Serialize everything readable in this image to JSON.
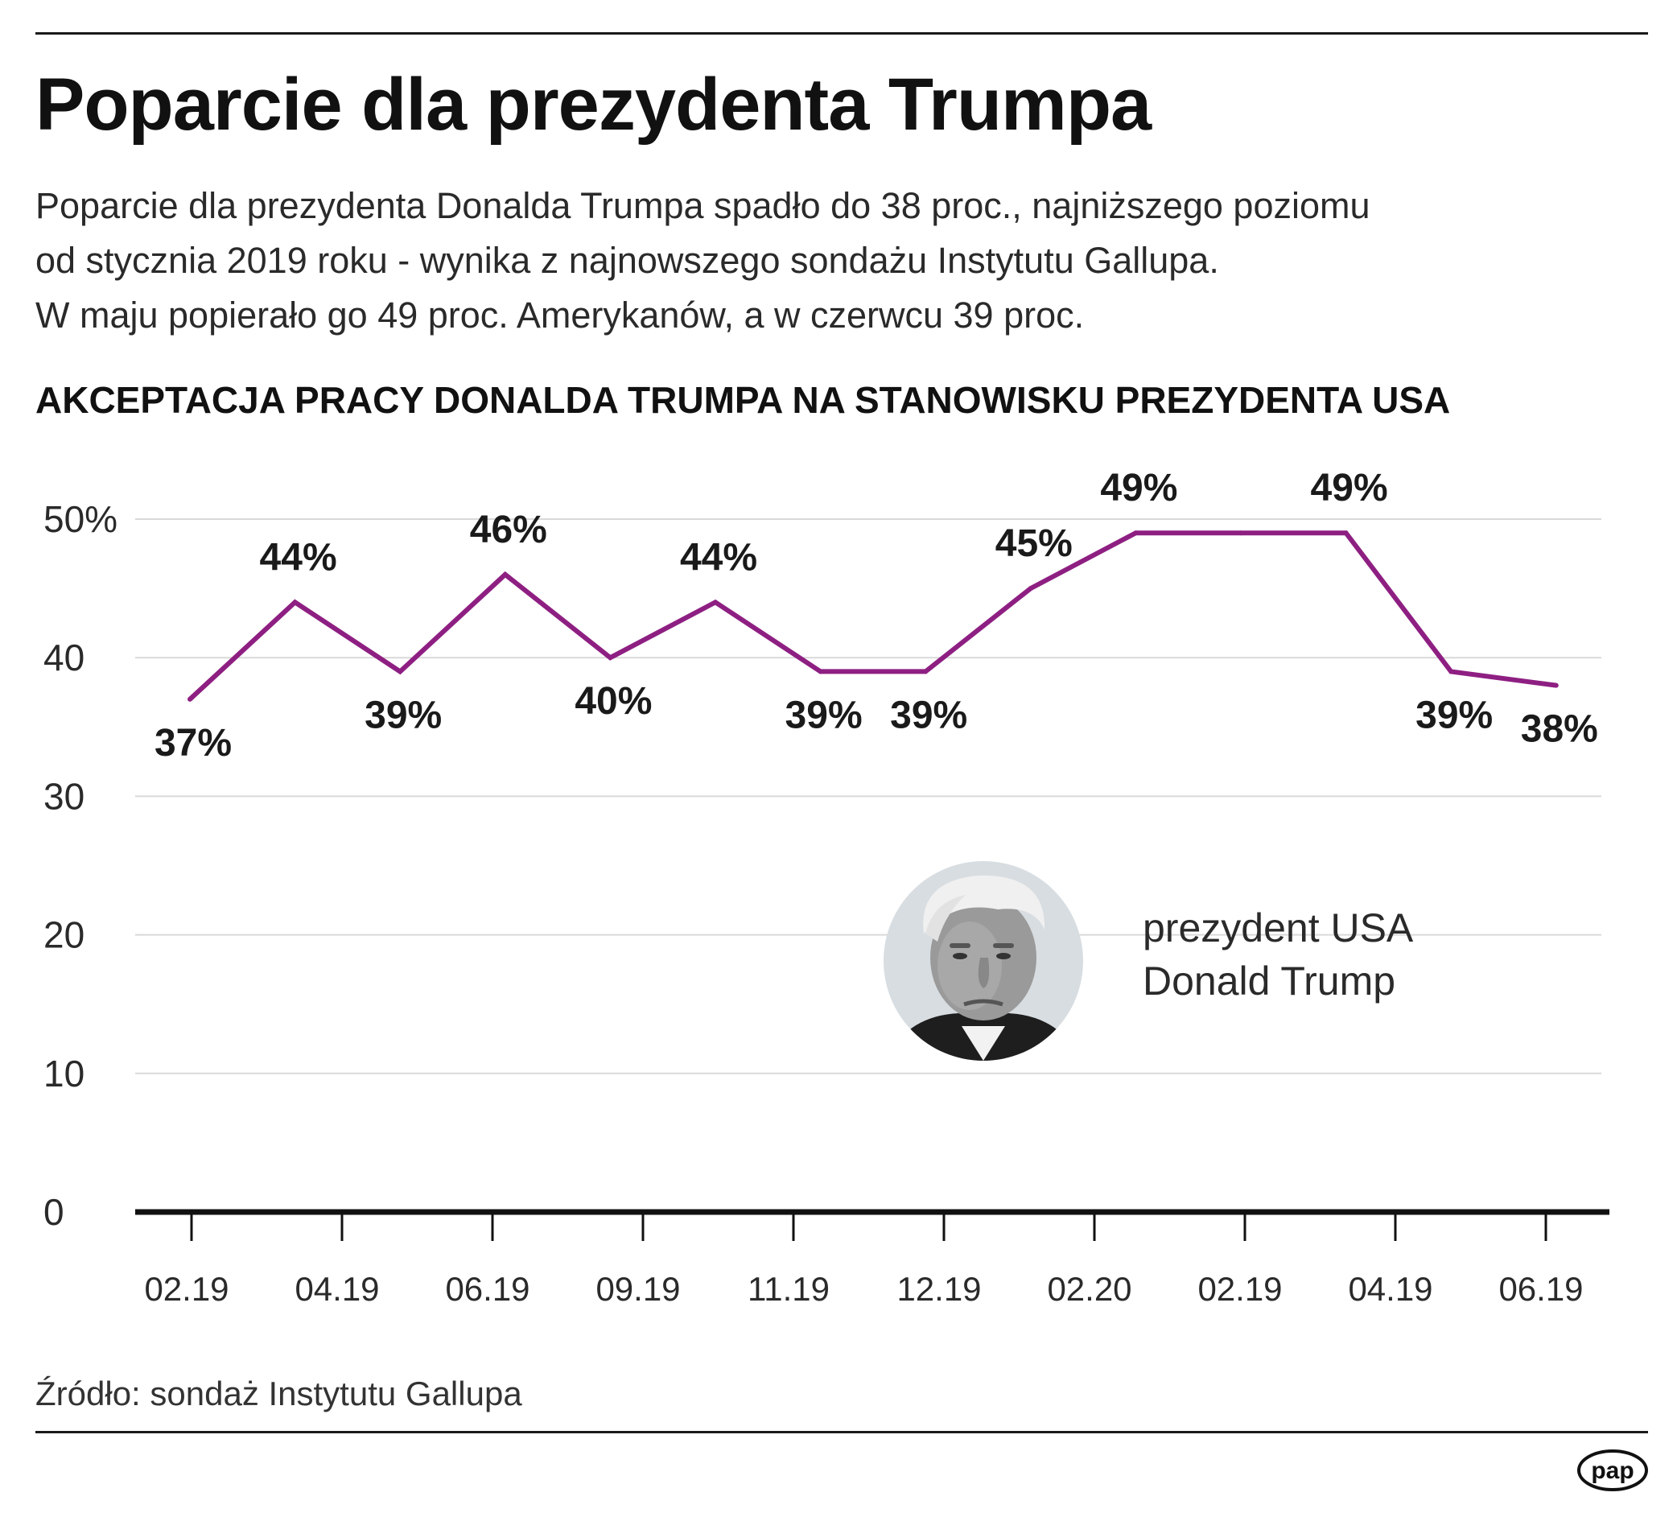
{
  "header": {
    "title": "Poparcie dla prezydenta Trumpa",
    "subtitle_lines": [
      "Poparcie dla prezydenta Donalda Trumpa spadło do 38 proc., najniższego poziomu",
      "od stycznia 2019 roku - wynika z najnowszego sondażu Instytutu Gallupa.",
      "W maju popierało go 49 proc. Amerykanów, a w czerwcu 39 proc."
    ]
  },
  "chart_heading": "AKCEPTACJA PRACY DONALDA TRUMPA NA STANOWISKU PREZYDENTA USA",
  "photo": {
    "label_line1": "prezydent USA",
    "label_line2": "Donald Trump"
  },
  "footer": {
    "source": "Źródło: sondaż Instytutu Gallupa",
    "logo_text": "pap"
  },
  "colors": {
    "line": "#8e1f82",
    "grid": "#d9d9d9",
    "axis": "#111111"
  },
  "chart_data": {
    "type": "line",
    "title": "AKCEPTACJA PRACY DONALDA TRUMPA NA STANOWISKU PREZYDENTA USA",
    "xlabel": "",
    "ylabel": "",
    "ylim": [
      0,
      50
    ],
    "y_ticks": [
      "0",
      "10",
      "20",
      "30",
      "40",
      "50%"
    ],
    "grid": true,
    "tick_labels": [
      "02.19",
      "04.19",
      "06.19",
      "09.19",
      "11.19",
      "12.19",
      "02.20",
      "02.19",
      "04.19",
      "06.19"
    ],
    "values": [
      37,
      44,
      39,
      46,
      40,
      44,
      39,
      39,
      45,
      49,
      49,
      49,
      39,
      38
    ],
    "data_labels": [
      "37%",
      "44%",
      "39%",
      "46%",
      "40%",
      "44%",
      "39%",
      "39%",
      "45%",
      "49%",
      null,
      "49%",
      "39%",
      "38%"
    ],
    "label_positions": [
      "below",
      "above",
      "below",
      "above",
      "below",
      "above",
      "below",
      "below",
      "above",
      "above",
      null,
      "above",
      "below",
      "below"
    ]
  }
}
